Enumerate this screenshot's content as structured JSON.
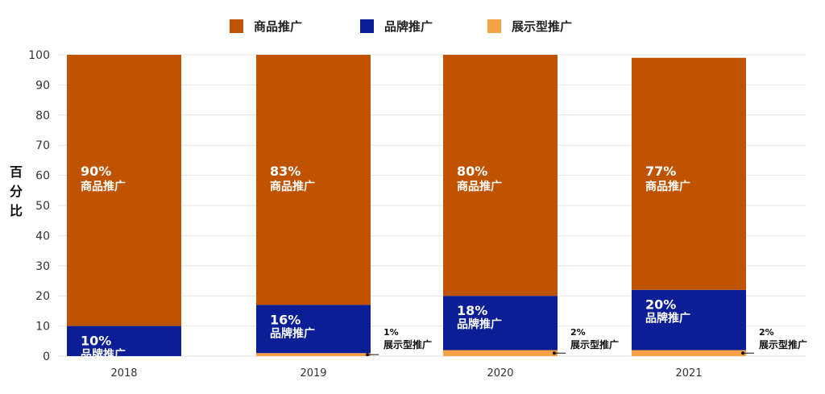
{
  "chart_data": {
    "type": "bar",
    "stacked": true,
    "categories": [
      "2018",
      "2019",
      "2020",
      "2021"
    ],
    "series": [
      {
        "name": "展示型推广",
        "color": "#F7A145",
        "values": [
          0,
          1,
          2,
          2
        ]
      },
      {
        "name": "品牌推广",
        "color": "#0A1F96",
        "values": [
          10,
          16,
          18,
          20
        ]
      },
      {
        "name": "商品推广",
        "color": "#C05300",
        "values": [
          90,
          83,
          80,
          77
        ]
      }
    ],
    "segment_labels": {
      "商品推广": [
        "90%",
        "83%",
        "80%",
        "77%"
      ],
      "品牌推广": [
        "10%",
        "16%",
        "18%",
        "20%"
      ],
      "展示型推广": [
        "",
        "1%",
        "2%",
        "2%"
      ]
    },
    "yticks": [
      "0",
      "10",
      "20",
      "30",
      "40",
      "50",
      "60",
      "70",
      "80",
      "90",
      "100"
    ],
    "ylabel": "百分比",
    "xlabel": "",
    "ylim": [
      0,
      100
    ],
    "legend_position": "top-center",
    "grid": true
  }
}
